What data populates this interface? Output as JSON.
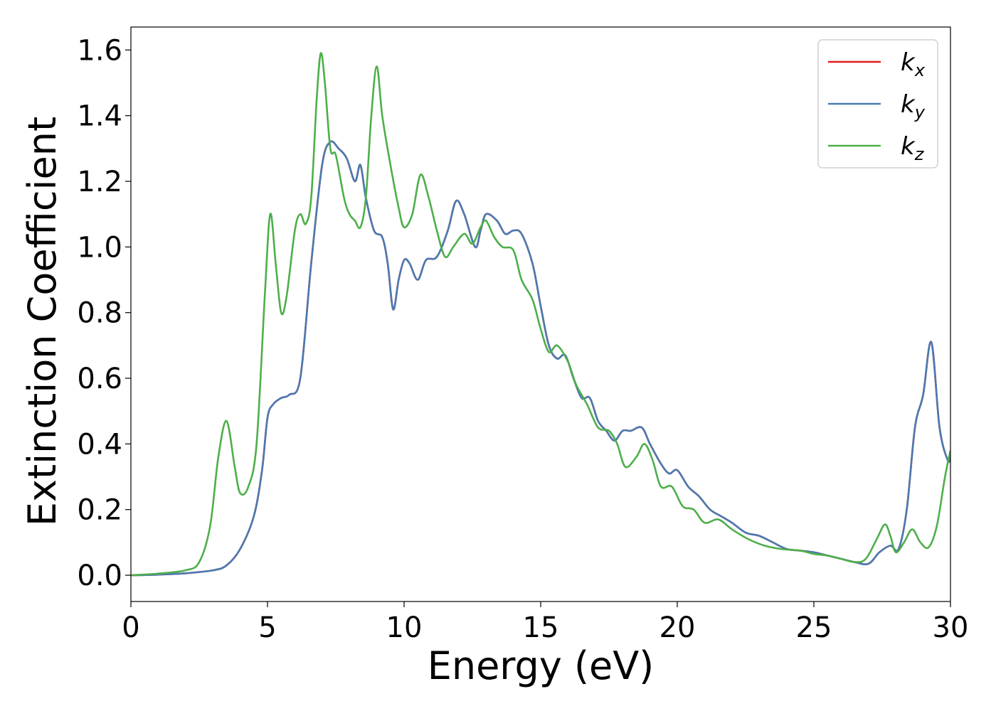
{
  "chart_data": {
    "type": "line",
    "xlabel": "Energy (eV)",
    "ylabel": "Extinction Coefficient",
    "xlim": [
      0,
      30
    ],
    "ylim": [
      -0.08,
      1.67
    ],
    "xticks": [
      0,
      5,
      10,
      15,
      20,
      25,
      30
    ],
    "xtick_labels": [
      "0",
      "5",
      "10",
      "15",
      "20",
      "25",
      "30"
    ],
    "yticks": [
      0.0,
      0.2,
      0.4,
      0.6,
      0.8,
      1.0,
      1.2,
      1.4,
      1.6
    ],
    "ytick_labels": [
      "0.0",
      "0.2",
      "0.4",
      "0.6",
      "0.8",
      "1.0",
      "1.2",
      "1.4",
      "1.6"
    ],
    "grid": false,
    "legend_position": "top-right",
    "series": [
      {
        "name": "k_x",
        "legend_base": "k",
        "legend_sub": "x",
        "color": "#e41a1c",
        "points": [
          [
            0,
            0.0
          ],
          [
            1,
            0.002
          ],
          [
            2,
            0.006
          ],
          [
            3,
            0.015
          ],
          [
            3.5,
            0.03
          ],
          [
            4,
            0.08
          ],
          [
            4.5,
            0.18
          ],
          [
            4.8,
            0.32
          ],
          [
            5.0,
            0.48
          ],
          [
            5.2,
            0.52
          ],
          [
            5.5,
            0.54
          ],
          [
            5.8,
            0.55
          ],
          [
            6.2,
            0.6
          ],
          [
            6.6,
            0.95
          ],
          [
            7.0,
            1.25
          ],
          [
            7.3,
            1.32
          ],
          [
            7.6,
            1.3
          ],
          [
            7.9,
            1.27
          ],
          [
            8.2,
            1.2
          ],
          [
            8.4,
            1.25
          ],
          [
            8.6,
            1.15
          ],
          [
            8.9,
            1.05
          ],
          [
            9.2,
            1.03
          ],
          [
            9.4,
            0.95
          ],
          [
            9.6,
            0.81
          ],
          [
            9.8,
            0.9
          ],
          [
            10.0,
            0.96
          ],
          [
            10.2,
            0.95
          ],
          [
            10.5,
            0.9
          ],
          [
            10.8,
            0.96
          ],
          [
            11.2,
            0.97
          ],
          [
            11.6,
            1.05
          ],
          [
            11.9,
            1.14
          ],
          [
            12.2,
            1.1
          ],
          [
            12.6,
            1.0
          ],
          [
            12.8,
            1.05
          ],
          [
            13.0,
            1.1
          ],
          [
            13.4,
            1.08
          ],
          [
            13.7,
            1.04
          ],
          [
            14.0,
            1.05
          ],
          [
            14.3,
            1.04
          ],
          [
            14.7,
            0.95
          ],
          [
            15.0,
            0.82
          ],
          [
            15.3,
            0.7
          ],
          [
            15.6,
            0.66
          ],
          [
            15.9,
            0.67
          ],
          [
            16.2,
            0.6
          ],
          [
            16.5,
            0.54
          ],
          [
            16.8,
            0.54
          ],
          [
            17.1,
            0.47
          ],
          [
            17.4,
            0.44
          ],
          [
            17.7,
            0.41
          ],
          [
            18.0,
            0.44
          ],
          [
            18.3,
            0.44
          ],
          [
            18.7,
            0.45
          ],
          [
            19.0,
            0.4
          ],
          [
            19.4,
            0.34
          ],
          [
            19.7,
            0.31
          ],
          [
            20.0,
            0.32
          ],
          [
            20.4,
            0.27
          ],
          [
            20.8,
            0.24
          ],
          [
            21.2,
            0.2
          ],
          [
            21.6,
            0.18
          ],
          [
            22.0,
            0.16
          ],
          [
            22.5,
            0.13
          ],
          [
            23.0,
            0.12
          ],
          [
            23.5,
            0.1
          ],
          [
            24.0,
            0.08
          ],
          [
            24.5,
            0.075
          ],
          [
            25.0,
            0.07
          ],
          [
            25.5,
            0.06
          ],
          [
            26.0,
            0.05
          ],
          [
            26.5,
            0.04
          ],
          [
            27.0,
            0.035
          ],
          [
            27.4,
            0.07
          ],
          [
            27.8,
            0.09
          ],
          [
            28.1,
            0.08
          ],
          [
            28.4,
            0.2
          ],
          [
            28.7,
            0.45
          ],
          [
            29.0,
            0.55
          ],
          [
            29.3,
            0.71
          ],
          [
            29.6,
            0.45
          ],
          [
            29.9,
            0.35
          ],
          [
            30,
            0.36
          ]
        ]
      },
      {
        "name": "k_y",
        "legend_base": "k",
        "legend_sub": "y",
        "color": "#4a7ab1",
        "points": [
          [
            0,
            0.0
          ],
          [
            1,
            0.002
          ],
          [
            2,
            0.006
          ],
          [
            3,
            0.015
          ],
          [
            3.5,
            0.03
          ],
          [
            4,
            0.08
          ],
          [
            4.5,
            0.18
          ],
          [
            4.8,
            0.32
          ],
          [
            5.0,
            0.48
          ],
          [
            5.2,
            0.52
          ],
          [
            5.5,
            0.54
          ],
          [
            5.8,
            0.55
          ],
          [
            6.2,
            0.6
          ],
          [
            6.6,
            0.95
          ],
          [
            7.0,
            1.25
          ],
          [
            7.3,
            1.32
          ],
          [
            7.6,
            1.3
          ],
          [
            7.9,
            1.27
          ],
          [
            8.2,
            1.2
          ],
          [
            8.4,
            1.25
          ],
          [
            8.6,
            1.15
          ],
          [
            8.9,
            1.05
          ],
          [
            9.2,
            1.03
          ],
          [
            9.4,
            0.95
          ],
          [
            9.6,
            0.81
          ],
          [
            9.8,
            0.9
          ],
          [
            10.0,
            0.96
          ],
          [
            10.2,
            0.95
          ],
          [
            10.5,
            0.9
          ],
          [
            10.8,
            0.96
          ],
          [
            11.2,
            0.97
          ],
          [
            11.6,
            1.05
          ],
          [
            11.9,
            1.14
          ],
          [
            12.2,
            1.1
          ],
          [
            12.6,
            1.0
          ],
          [
            12.8,
            1.05
          ],
          [
            13.0,
            1.1
          ],
          [
            13.4,
            1.08
          ],
          [
            13.7,
            1.04
          ],
          [
            14.0,
            1.05
          ],
          [
            14.3,
            1.04
          ],
          [
            14.7,
            0.95
          ],
          [
            15.0,
            0.82
          ],
          [
            15.3,
            0.7
          ],
          [
            15.6,
            0.66
          ],
          [
            15.9,
            0.67
          ],
          [
            16.2,
            0.6
          ],
          [
            16.5,
            0.54
          ],
          [
            16.8,
            0.54
          ],
          [
            17.1,
            0.47
          ],
          [
            17.4,
            0.44
          ],
          [
            17.7,
            0.41
          ],
          [
            18.0,
            0.44
          ],
          [
            18.3,
            0.44
          ],
          [
            18.7,
            0.45
          ],
          [
            19.0,
            0.4
          ],
          [
            19.4,
            0.34
          ],
          [
            19.7,
            0.31
          ],
          [
            20.0,
            0.32
          ],
          [
            20.4,
            0.27
          ],
          [
            20.8,
            0.24
          ],
          [
            21.2,
            0.2
          ],
          [
            21.6,
            0.18
          ],
          [
            22.0,
            0.16
          ],
          [
            22.5,
            0.13
          ],
          [
            23.0,
            0.12
          ],
          [
            23.5,
            0.1
          ],
          [
            24.0,
            0.08
          ],
          [
            24.5,
            0.075
          ],
          [
            25.0,
            0.07
          ],
          [
            25.5,
            0.06
          ],
          [
            26.0,
            0.05
          ],
          [
            26.5,
            0.04
          ],
          [
            27.0,
            0.035
          ],
          [
            27.4,
            0.07
          ],
          [
            27.8,
            0.09
          ],
          [
            28.1,
            0.08
          ],
          [
            28.4,
            0.2
          ],
          [
            28.7,
            0.45
          ],
          [
            29.0,
            0.55
          ],
          [
            29.3,
            0.71
          ],
          [
            29.6,
            0.45
          ],
          [
            29.9,
            0.35
          ],
          [
            30,
            0.36
          ]
        ]
      },
      {
        "name": "k_z",
        "legend_base": "k",
        "legend_sub": "z",
        "color": "#4daf4a",
        "points": [
          [
            0,
            0.0
          ],
          [
            1,
            0.005
          ],
          [
            2,
            0.015
          ],
          [
            2.5,
            0.04
          ],
          [
            2.9,
            0.15
          ],
          [
            3.2,
            0.36
          ],
          [
            3.5,
            0.47
          ],
          [
            3.8,
            0.33
          ],
          [
            4.0,
            0.25
          ],
          [
            4.3,
            0.27
          ],
          [
            4.6,
            0.4
          ],
          [
            4.9,
            0.85
          ],
          [
            5.1,
            1.1
          ],
          [
            5.3,
            0.95
          ],
          [
            5.5,
            0.8
          ],
          [
            5.7,
            0.85
          ],
          [
            6.0,
            1.05
          ],
          [
            6.2,
            1.1
          ],
          [
            6.4,
            1.07
          ],
          [
            6.6,
            1.15
          ],
          [
            6.8,
            1.45
          ],
          [
            6.95,
            1.59
          ],
          [
            7.1,
            1.5
          ],
          [
            7.3,
            1.3
          ],
          [
            7.5,
            1.28
          ],
          [
            7.8,
            1.15
          ],
          [
            8.0,
            1.1
          ],
          [
            8.2,
            1.08
          ],
          [
            8.4,
            1.06
          ],
          [
            8.6,
            1.15
          ],
          [
            8.8,
            1.4
          ],
          [
            9.0,
            1.55
          ],
          [
            9.2,
            1.4
          ],
          [
            9.5,
            1.25
          ],
          [
            9.8,
            1.12
          ],
          [
            10.0,
            1.06
          ],
          [
            10.3,
            1.1
          ],
          [
            10.6,
            1.22
          ],
          [
            10.9,
            1.15
          ],
          [
            11.2,
            1.05
          ],
          [
            11.5,
            0.97
          ],
          [
            11.8,
            1.0
          ],
          [
            12.2,
            1.04
          ],
          [
            12.5,
            1.01
          ],
          [
            12.8,
            1.06
          ],
          [
            13.0,
            1.08
          ],
          [
            13.3,
            1.03
          ],
          [
            13.6,
            1.0
          ],
          [
            14.0,
            0.99
          ],
          [
            14.3,
            0.9
          ],
          [
            14.7,
            0.84
          ],
          [
            15.0,
            0.75
          ],
          [
            15.3,
            0.68
          ],
          [
            15.6,
            0.7
          ],
          [
            16.0,
            0.65
          ],
          [
            16.3,
            0.58
          ],
          [
            16.7,
            0.52
          ],
          [
            17.1,
            0.45
          ],
          [
            17.5,
            0.44
          ],
          [
            17.8,
            0.4
          ],
          [
            18.1,
            0.33
          ],
          [
            18.5,
            0.36
          ],
          [
            18.8,
            0.4
          ],
          [
            19.1,
            0.35
          ],
          [
            19.4,
            0.27
          ],
          [
            19.8,
            0.27
          ],
          [
            20.2,
            0.21
          ],
          [
            20.6,
            0.2
          ],
          [
            21.0,
            0.16
          ],
          [
            21.5,
            0.17
          ],
          [
            22.0,
            0.14
          ],
          [
            22.6,
            0.11
          ],
          [
            23.2,
            0.09
          ],
          [
            23.8,
            0.08
          ],
          [
            24.5,
            0.075
          ],
          [
            25.0,
            0.065
          ],
          [
            25.5,
            0.06
          ],
          [
            26.0,
            0.05
          ],
          [
            26.5,
            0.04
          ],
          [
            26.9,
            0.05
          ],
          [
            27.3,
            0.11
          ],
          [
            27.6,
            0.155
          ],
          [
            27.8,
            0.12
          ],
          [
            28.0,
            0.07
          ],
          [
            28.3,
            0.1
          ],
          [
            28.6,
            0.14
          ],
          [
            28.9,
            0.1
          ],
          [
            29.2,
            0.085
          ],
          [
            29.5,
            0.15
          ],
          [
            29.8,
            0.3
          ],
          [
            30,
            0.38
          ]
        ]
      }
    ]
  }
}
